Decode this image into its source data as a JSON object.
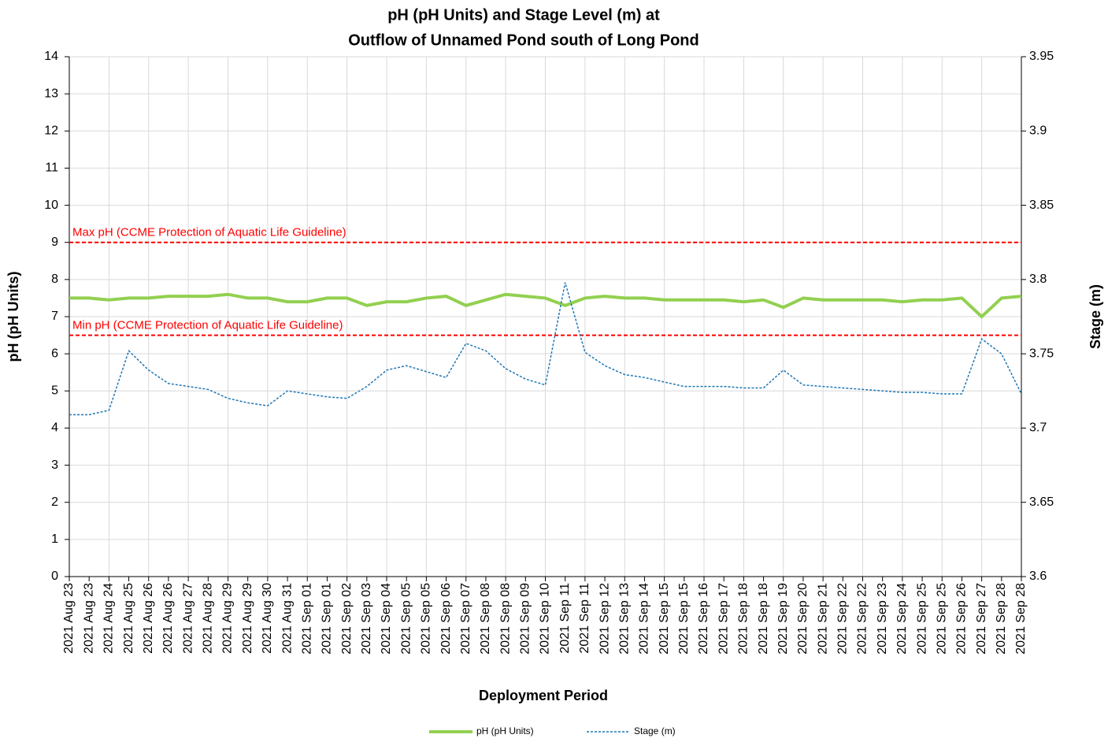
{
  "chart_data": {
    "type": "line",
    "title": [
      "pH (pH Units) and Stage Level (m) at",
      "Outflow of Unnamed Pond south of Long Pond"
    ],
    "xlabel": "Deployment Period",
    "ylabel": "pH (pH Units)",
    "y2label": "Stage (m)",
    "categories": [
      "2021 Aug 23",
      "2021 Aug 23",
      "2021 Aug 24",
      "2021 Aug 25",
      "2021 Aug 26",
      "2021 Aug 26",
      "2021 Aug 27",
      "2021 Aug 28",
      "2021 Aug 29",
      "2021 Aug 29",
      "2021 Aug 30",
      "2021 Aug 31",
      "2021 Sep 01",
      "2021 Sep 01",
      "2021 Sep 02",
      "2021 Sep 03",
      "2021 Sep 04",
      "2021 Sep 05",
      "2021 Sep 05",
      "2021 Sep 06",
      "2021 Sep 07",
      "2021 Sep 08",
      "2021 Sep 08",
      "2021 Sep 09",
      "2021 Sep 10",
      "2021 Sep 11",
      "2021 Sep 11",
      "2021 Sep 12",
      "2021 Sep 13",
      "2021 Sep 14",
      "2021 Sep 15",
      "2021 Sep 15",
      "2021 Sep 16",
      "2021 Sep 17",
      "2021 Sep 18",
      "2021 Sep 18",
      "2021 Sep 19",
      "2021 Sep 20",
      "2021 Sep 21",
      "2021 Sep 22",
      "2021 Sep 22",
      "2021 Sep 23",
      "2021 Sep 24",
      "2021 Sep 25",
      "2021 Sep 25",
      "2021 Sep 26",
      "2021 Sep 27",
      "2021 Sep 28",
      "2021 Sep 28"
    ],
    "series": [
      {
        "name": "pH (pH Units)",
        "color": "#92d050",
        "axis": "y",
        "values": [
          7.5,
          7.5,
          7.45,
          7.5,
          7.5,
          7.55,
          7.55,
          7.55,
          7.6,
          7.5,
          7.5,
          7.4,
          7.4,
          7.5,
          7.5,
          7.3,
          7.4,
          7.4,
          7.5,
          7.55,
          7.3,
          7.45,
          7.6,
          7.55,
          7.5,
          7.3,
          7.5,
          7.55,
          7.5,
          7.5,
          7.45,
          7.45,
          7.45,
          7.45,
          7.4,
          7.45,
          7.25,
          7.5,
          7.45,
          7.45,
          7.45,
          7.45,
          7.4,
          7.45,
          7.45,
          7.5,
          7.0,
          7.5,
          7.55
        ]
      },
      {
        "name": "Stage (m)",
        "color": "#1f77b4",
        "axis": "y2",
        "values": [
          3.709,
          3.709,
          3.712,
          3.752,
          3.739,
          3.73,
          3.728,
          3.726,
          3.72,
          3.717,
          3.715,
          3.725,
          3.723,
          3.721,
          3.72,
          3.728,
          3.739,
          3.742,
          3.738,
          3.734,
          3.757,
          3.752,
          3.74,
          3.733,
          3.729,
          3.798,
          3.751,
          3.742,
          3.736,
          3.734,
          3.731,
          3.728,
          3.728,
          3.728,
          3.727,
          3.727,
          3.739,
          3.729,
          3.728,
          3.727,
          3.726,
          3.725,
          3.724,
          3.724,
          3.723,
          3.723,
          3.76,
          3.75,
          3.723
        ]
      }
    ],
    "annotations": [
      {
        "value": 9,
        "text": "Max pH (CCME Protection of Aquatic Life Guideline)",
        "color": "#ff0000"
      },
      {
        "value": 6.5,
        "text": "Min pH (CCME Protection of Aquatic Life Guideline)",
        "color": "#ff0000"
      }
    ],
    "ylim": [
      0,
      14
    ],
    "yticks": [
      0,
      1,
      2,
      3,
      4,
      5,
      6,
      7,
      8,
      9,
      10,
      11,
      12,
      13,
      14
    ],
    "y2lim": [
      3.6,
      3.95
    ],
    "y2ticks": [
      3.6,
      3.65,
      3.7,
      3.75,
      3.8,
      3.85,
      3.9,
      3.95
    ],
    "grid": true,
    "legend": "bottom"
  }
}
